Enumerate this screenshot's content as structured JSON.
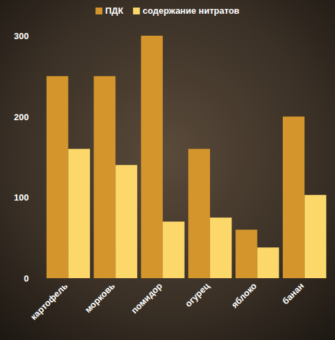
{
  "chart_data": {
    "type": "bar",
    "categories": [
      "картофель",
      "морковь",
      "помидор",
      "огурец",
      "яблоко",
      "банан"
    ],
    "series": [
      {
        "name": "ПДК",
        "color": "#d4962c",
        "values": [
          250,
          250,
          300,
          160,
          60,
          200
        ]
      },
      {
        "name": "содержание нитратов",
        "color": "#fcd86a",
        "values": [
          160,
          140,
          70,
          75,
          38,
          103
        ]
      }
    ],
    "ylim": [
      0,
      300
    ],
    "yticks": [
      0,
      100,
      200,
      300
    ],
    "grid": false,
    "legend": "top"
  }
}
